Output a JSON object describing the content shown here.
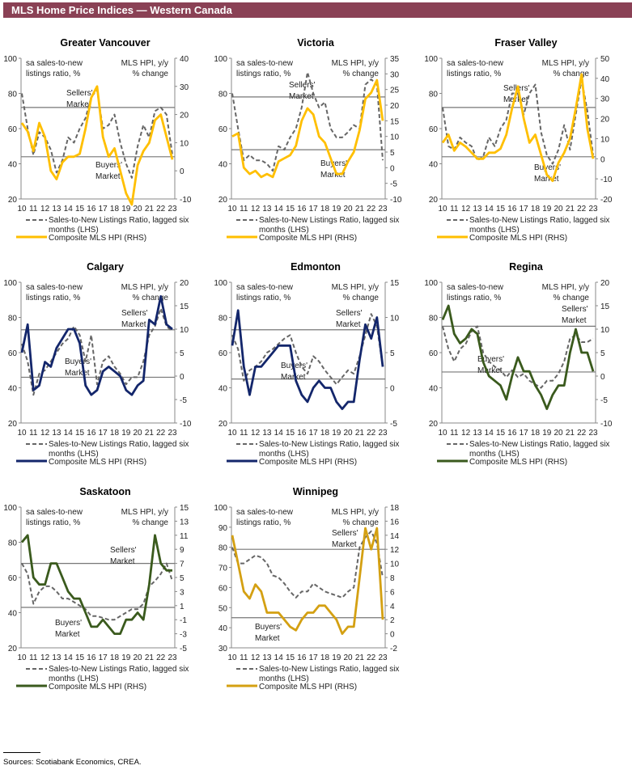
{
  "header": {
    "title": "MLS Home Price Indices — Western Canada"
  },
  "footer": {
    "sources": "Sources: Scotiabank Economics, CREA."
  },
  "common": {
    "lhs_note": [
      "sa sales-to-new",
      "listings ratio, %"
    ],
    "rhs_note": [
      "MLS HPI, y/y",
      "% change"
    ],
    "sellers": [
      "Sellers'",
      "Market"
    ],
    "buyers": [
      "Buyers'",
      "Market"
    ],
    "legend_dashed": [
      "Sales-to-New Listings Ratio, lagged six",
      "months (LHS)"
    ],
    "legend_solid": "Composite MLS HPI (RHS)",
    "x_ticks": [
      "10",
      "11",
      "12",
      "13",
      "14",
      "15",
      "16",
      "17",
      "18",
      "19",
      "20",
      "21",
      "22",
      "23"
    ]
  },
  "chart_data": [
    {
      "type": "line",
      "title": "Greater Vancouver",
      "x_start": 2010,
      "x_step": 0.5,
      "xlim": [
        2010,
        2023
      ],
      "ylim_lhs": [
        20,
        100
      ],
      "yticks_lhs": [
        20,
        40,
        60,
        80,
        100
      ],
      "ylim_rhs": [
        -10,
        40
      ],
      "yticks_rhs": [
        -10,
        0,
        10,
        20,
        30,
        40
      ],
      "sellers_threshold": 72,
      "buyers_threshold": 44,
      "color": "#ffbf00",
      "series": [
        {
          "name": "Sales-to-New Listings Ratio, lagged six months (LHS)",
          "axis": "lhs",
          "values": [
            80,
            60,
            45,
            58,
            55,
            48,
            35,
            42,
            55,
            52,
            60,
            66,
            78,
            82,
            60,
            62,
            68,
            52,
            40,
            32,
            50,
            62,
            55,
            70,
            72,
            68,
            45
          ]
        },
        {
          "name": "Composite MLS HPI (RHS)",
          "axis": "rhs",
          "values": [
            17,
            14,
            7,
            17,
            12,
            0,
            -3,
            3,
            5,
            5,
            6,
            15,
            26,
            30,
            12,
            5,
            8,
            0,
            -8,
            -12,
            2,
            7,
            10,
            18,
            20,
            12,
            4
          ]
        }
      ]
    },
    {
      "type": "line",
      "title": "Victoria",
      "x_start": 2010,
      "x_step": 0.5,
      "xlim": [
        2010,
        2023
      ],
      "ylim_lhs": [
        20,
        100
      ],
      "yticks_lhs": [
        20,
        40,
        60,
        80,
        100
      ],
      "ylim_rhs": [
        -10,
        35
      ],
      "yticks_rhs": [
        -10,
        -5,
        0,
        5,
        10,
        15,
        20,
        25,
        30,
        35
      ],
      "sellers_threshold": 78,
      "buyers_threshold": 48,
      "color": "#ffbf00",
      "series": [
        {
          "name": "Sales-to-New Listings Ratio, lagged six months (LHS)",
          "axis": "lhs",
          "values": [
            80,
            60,
            42,
            45,
            42,
            42,
            40,
            36,
            50,
            48,
            55,
            60,
            72,
            92,
            80,
            72,
            75,
            60,
            55,
            55,
            58,
            62,
            60,
            85,
            88,
            85,
            42
          ]
        },
        {
          "name": "Composite MLS HPI (RHS)",
          "axis": "rhs",
          "values": [
            10,
            11,
            0,
            -2,
            -1,
            -3,
            -2,
            -3,
            2,
            3,
            4,
            7,
            15,
            19,
            17,
            10,
            8,
            3,
            -2,
            -2,
            2,
            5,
            12,
            22,
            24,
            28,
            15
          ]
        }
      ]
    },
    {
      "type": "line",
      "title": "Fraser Valley",
      "x_start": 2010,
      "x_step": 0.5,
      "xlim": [
        2010,
        2023
      ],
      "ylim_lhs": [
        20,
        100
      ],
      "yticks_lhs": [
        20,
        40,
        60,
        80,
        100
      ],
      "ylim_rhs": [
        -20,
        50
      ],
      "yticks_rhs": [
        -20,
        -10,
        0,
        10,
        20,
        30,
        40,
        50
      ],
      "sellers_threshold": 72,
      "buyers_threshold": 44,
      "color": "#ffbf00",
      "series": [
        {
          "name": "Sales-to-New Listings Ratio, lagged six months (LHS)",
          "axis": "lhs",
          "values": [
            72,
            50,
            48,
            55,
            52,
            50,
            42,
            44,
            55,
            50,
            60,
            65,
            80,
            80,
            68,
            80,
            85,
            58,
            45,
            40,
            48,
            62,
            48,
            68,
            88,
            70,
            45
          ]
        },
        {
          "name": "Composite MLS HPI (RHS)",
          "axis": "rhs",
          "values": [
            8,
            12,
            4,
            8,
            6,
            3,
            0,
            0,
            3,
            3,
            5,
            12,
            25,
            36,
            20,
            8,
            12,
            2,
            -8,
            -11,
            -2,
            3,
            10,
            25,
            42,
            15,
            0
          ]
        }
      ]
    },
    {
      "type": "line",
      "title": "Calgary",
      "x_start": 2010,
      "x_step": 0.5,
      "xlim": [
        2010,
        2023
      ],
      "ylim_lhs": [
        20,
        100
      ],
      "yticks_lhs": [
        20,
        40,
        60,
        80,
        100
      ],
      "ylim_rhs": [
        -10,
        20
      ],
      "yticks_rhs": [
        -10,
        -5,
        0,
        5,
        10,
        15,
        20
      ],
      "sellers_threshold": 73,
      "buyers_threshold": 46,
      "color": "#13266b",
      "series": [
        {
          "name": "Sales-to-New Listings Ratio, lagged six months (LHS)",
          "axis": "lhs",
          "values": [
            65,
            55,
            36,
            48,
            50,
            55,
            60,
            65,
            68,
            75,
            70,
            55,
            70,
            42,
            55,
            58,
            52,
            48,
            42,
            46,
            46,
            55,
            70,
            75,
            85,
            75,
            72
          ]
        },
        {
          "name": "Composite MLS HPI (RHS)",
          "axis": "rhs",
          "values": [
            5,
            11,
            -3,
            -2,
            3,
            2,
            6,
            8,
            10,
            10,
            7,
            -2,
            -4,
            -3,
            1,
            2,
            1,
            0,
            -3,
            -4,
            -2,
            -1,
            12,
            11,
            17,
            11,
            10
          ]
        }
      ]
    },
    {
      "type": "line",
      "title": "Edmonton",
      "x_start": 2010,
      "x_step": 0.5,
      "xlim": [
        2010,
        2023
      ],
      "ylim_lhs": [
        20,
        100
      ],
      "yticks_lhs": [
        20,
        40,
        60,
        80,
        100
      ],
      "ylim_rhs": [
        -5,
        15
      ],
      "yticks_rhs": [
        -5,
        0,
        5,
        10,
        15
      ],
      "sellers_threshold": 73,
      "buyers_threshold": 45,
      "color": "#13266b",
      "series": [
        {
          "name": "Sales-to-New Listings Ratio, lagged six months (LHS)",
          "axis": "lhs",
          "values": [
            70,
            62,
            44,
            50,
            52,
            55,
            60,
            62,
            65,
            68,
            70,
            60,
            52,
            48,
            58,
            55,
            50,
            46,
            42,
            46,
            50,
            48,
            58,
            70,
            82,
            75,
            52
          ]
        },
        {
          "name": "Composite MLS HPI (RHS)",
          "axis": "rhs",
          "values": [
            6,
            11,
            3,
            -1,
            3,
            3,
            4,
            5,
            6,
            6,
            6,
            1,
            -1,
            -2,
            0,
            1,
            0,
            0,
            -2,
            -3,
            -2,
            -2,
            4,
            9,
            7,
            10,
            3
          ]
        }
      ]
    },
    {
      "type": "line",
      "title": "Regina",
      "x_start": 2010,
      "x_step": 0.5,
      "xlim": [
        2010,
        2023
      ],
      "ylim_lhs": [
        20,
        100
      ],
      "yticks_lhs": [
        20,
        40,
        60,
        80,
        100
      ],
      "ylim_rhs": [
        -10,
        20
      ],
      "yticks_rhs": [
        -10,
        -5,
        0,
        5,
        10,
        15,
        20
      ],
      "sellers_threshold": 75,
      "buyers_threshold": 49,
      "color": "#3a5a1d",
      "series": [
        {
          "name": "Sales-to-New Listings Ratio, lagged six months (LHS)",
          "axis": "lhs",
          "values": [
            75,
            62,
            55,
            62,
            65,
            72,
            75,
            60,
            55,
            52,
            50,
            46,
            50,
            46,
            48,
            44,
            42,
            40,
            44,
            44,
            48,
            55,
            68,
            70,
            66,
            66,
            68
          ]
        },
        {
          "name": "Composite MLS HPI (RHS)",
          "axis": "rhs",
          "values": [
            12,
            15,
            9,
            7,
            8,
            10,
            9,
            3,
            0,
            -1,
            -2,
            -5,
            0,
            4,
            1,
            1,
            -2,
            -4,
            -7,
            -4,
            -2,
            -2,
            5,
            10,
            5,
            5,
            1
          ]
        }
      ]
    },
    {
      "type": "line",
      "title": "Saskatoon",
      "x_start": 2010,
      "x_step": 0.5,
      "xlim": [
        2010,
        2023
      ],
      "ylim_lhs": [
        20,
        100
      ],
      "yticks_lhs": [
        20,
        40,
        60,
        80,
        100
      ],
      "ylim_rhs": [
        -5,
        15
      ],
      "yticks_rhs": [
        -5,
        -3,
        -1,
        1,
        3,
        5,
        7,
        9,
        11,
        13,
        15
      ],
      "sellers_threshold": 68,
      "buyers_threshold": 43,
      "color": "#3a5a1d",
      "series": [
        {
          "name": "Sales-to-New Listings Ratio, lagged six months (LHS)",
          "axis": "lhs",
          "values": [
            68,
            62,
            45,
            52,
            55,
            55,
            52,
            48,
            48,
            46,
            44,
            42,
            38,
            38,
            37,
            36,
            36,
            38,
            40,
            42,
            42,
            45,
            55,
            58,
            62,
            68,
            58
          ]
        },
        {
          "name": "Composite MLS HPI (RHS)",
          "axis": "rhs",
          "values": [
            10,
            11,
            5,
            4,
            4,
            7,
            7,
            5,
            3,
            2,
            2,
            0,
            -2,
            -2,
            -1,
            -2,
            -3,
            -3,
            -1,
            -1,
            0,
            -1,
            4,
            11,
            7,
            6,
            6
          ]
        }
      ]
    },
    {
      "type": "line",
      "title": "Winnipeg",
      "x_start": 2010,
      "x_step": 0.5,
      "xlim": [
        2010,
        2023
      ],
      "ylim_lhs": [
        30,
        100
      ],
      "yticks_lhs": [
        30,
        40,
        50,
        60,
        70,
        80,
        90,
        100
      ],
      "ylim_rhs": [
        -2,
        18
      ],
      "yticks_rhs": [
        -2,
        0,
        2,
        4,
        6,
        8,
        10,
        12,
        14,
        16,
        18
      ],
      "sellers_threshold": 79,
      "buyers_threshold": 45,
      "color": "#d4a012",
      "series": [
        {
          "name": "Sales-to-New Listings Ratio, lagged six months (LHS)",
          "axis": "lhs",
          "values": [
            80,
            72,
            72,
            74,
            76,
            75,
            72,
            66,
            65,
            62,
            58,
            55,
            58,
            58,
            62,
            60,
            58,
            57,
            56,
            55,
            58,
            60,
            80,
            85,
            88,
            82,
            65
          ]
        },
        {
          "name": "Composite MLS HPI (RHS)",
          "axis": "rhs",
          "values": [
            14,
            10,
            6,
            5,
            7,
            6,
            3,
            3,
            3,
            2,
            1,
            0.5,
            2,
            3,
            3,
            4,
            4,
            3,
            2,
            0,
            1,
            1,
            8,
            15,
            12,
            15,
            2
          ]
        }
      ]
    }
  ]
}
